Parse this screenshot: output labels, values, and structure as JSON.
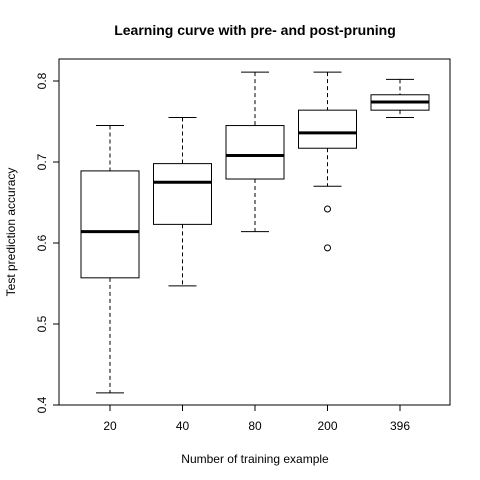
{
  "chart_data": {
    "type": "boxplot",
    "title": "Learning curve with pre- and post-pruning",
    "xlabel": "Number of training example",
    "ylabel": "Test prediction accuracy",
    "ylim": [
      0.4,
      0.82
    ],
    "yticks": [
      "0.4",
      "0.5",
      "0.6",
      "0.7",
      "0.8"
    ],
    "categories": [
      "20",
      "40",
      "80",
      "200",
      "396"
    ],
    "boxes": [
      {
        "category": "20",
        "whisker_low": 0.415,
        "q1": 0.557,
        "median": 0.614,
        "q3": 0.689,
        "whisker_high": 0.745,
        "outliers": []
      },
      {
        "category": "40",
        "whisker_low": 0.547,
        "q1": 0.623,
        "median": 0.675,
        "q3": 0.698,
        "whisker_high": 0.755,
        "outliers": []
      },
      {
        "category": "80",
        "whisker_low": 0.614,
        "q1": 0.679,
        "median": 0.708,
        "q3": 0.745,
        "whisker_high": 0.811,
        "outliers": []
      },
      {
        "category": "200",
        "whisker_low": 0.67,
        "q1": 0.717,
        "median": 0.736,
        "q3": 0.764,
        "whisker_high": 0.811,
        "outliers": [
          0.642,
          0.594
        ]
      },
      {
        "category": "396",
        "whisker_low": 0.755,
        "q1": 0.764,
        "median": 0.774,
        "q3": 0.783,
        "whisker_high": 0.802,
        "outliers": []
      }
    ],
    "grid": false,
    "legend": "none"
  }
}
